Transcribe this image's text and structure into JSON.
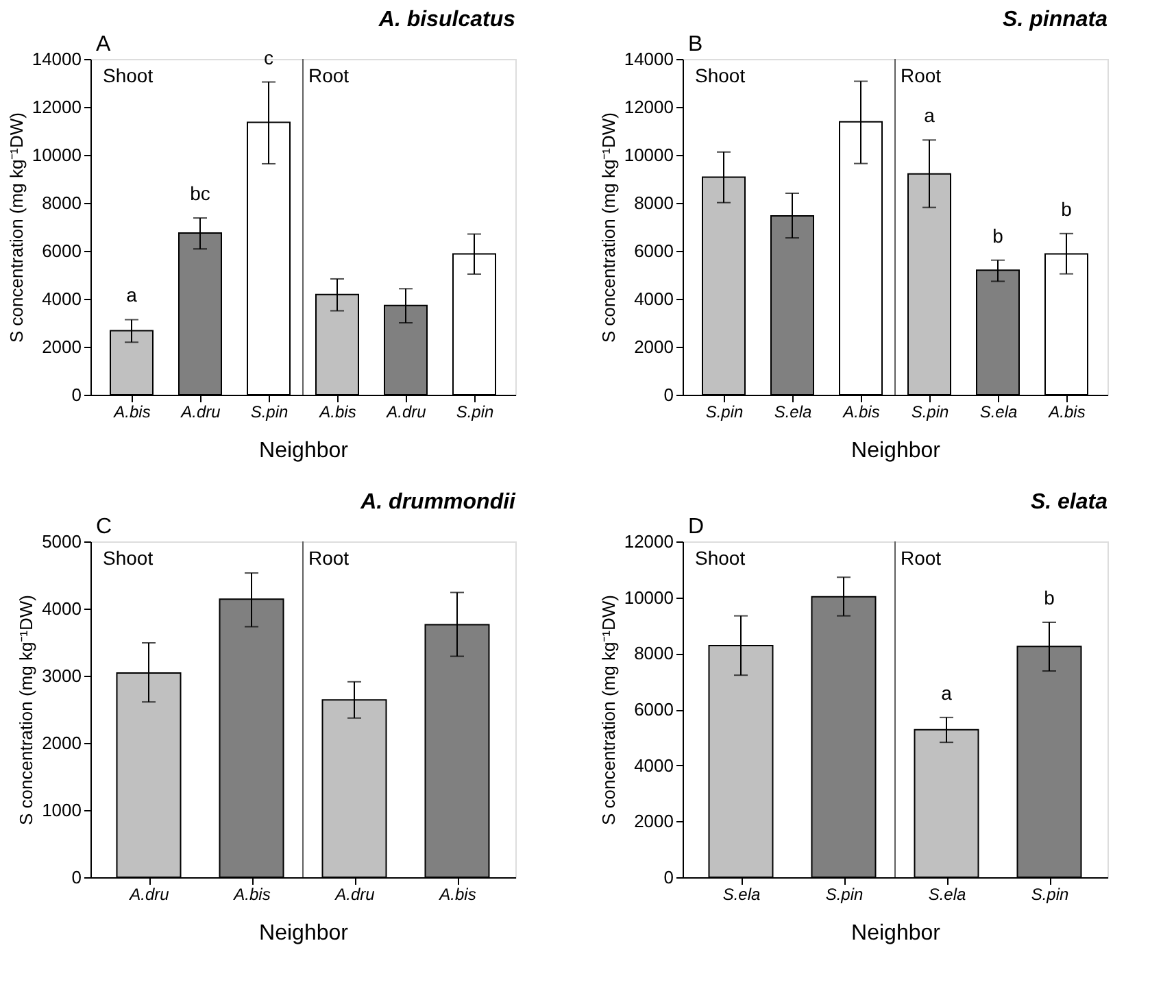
{
  "chart_data": [
    {
      "type": "bar",
      "title": "A. bisulcatus",
      "xlabel": "Neighbor",
      "ylabel": "S concentration (mg kg⁻¹DW)",
      "categories": [
        "A.bis",
        "A.dru",
        "S.pin",
        "A.bis",
        "A.dru",
        "S.pin"
      ],
      "values": [
        2670,
        6740,
        11360,
        4180,
        3720,
        5870
      ],
      "colors": [
        "#c0c0c0",
        "#808080",
        "#ffffff",
        "#c0c0c0",
        "#808080",
        "#ffffff"
      ],
      "errors": [
        [
          2190,
          3130
        ],
        [
          6080,
          7370
        ],
        [
          9630,
          13040
        ],
        [
          3500,
          4830
        ],
        [
          3000,
          4420
        ],
        [
          5030,
          6700
        ]
      ],
      "value_labels": [
        "a",
        "bc",
        "c",
        null,
        null,
        null
      ],
      "ylim": [
        0,
        14000
      ],
      "yticks": [
        0,
        2000,
        4000,
        6000,
        8000,
        10000,
        12000,
        14000
      ],
      "annotations": [
        "A",
        "Shoot",
        "Root"
      ],
      "grid": false
    },
    {
      "type": "bar",
      "title": "S. pinnata",
      "xlabel": "Neighbor",
      "ylabel": "S concentration (mg kg⁻¹DW)",
      "categories": [
        "S.pin",
        "S.ela",
        "A.bis",
        "S.pin",
        "S.ela",
        "A.bis"
      ],
      "values": [
        9070,
        7460,
        11380,
        9210,
        5190,
        5870
      ],
      "colors": [
        "#c0c0c0",
        "#808080",
        "#ffffff",
        "#c0c0c0",
        "#808080",
        "#ffffff"
      ],
      "errors": [
        [
          8010,
          10120
        ],
        [
          6540,
          8400
        ],
        [
          9640,
          13070
        ],
        [
          7810,
          10620
        ],
        [
          4730,
          5610
        ],
        [
          5040,
          6720
        ]
      ],
      "value_labels": [
        null,
        null,
        null,
        "a",
        "b",
        "b"
      ],
      "ylim": [
        0,
        14000
      ],
      "yticks": [
        0,
        2000,
        4000,
        6000,
        8000,
        10000,
        12000,
        14000
      ],
      "annotations": [
        "B",
        "Shoot",
        "Root"
      ],
      "grid": false
    },
    {
      "type": "bar",
      "title": "A. drummondii",
      "xlabel": "Neighbor",
      "ylabel": "S concentration (mg kg⁻¹DW)",
      "categories": [
        "A.dru",
        "A.bis",
        "A.dru",
        "A.bis"
      ],
      "values": [
        3040,
        4140,
        2640,
        3760
      ],
      "colors": [
        "#c0c0c0",
        "#808080",
        "#c0c0c0",
        "#808080"
      ],
      "errors": [
        [
          2610,
          3490
        ],
        [
          3730,
          4530
        ],
        [
          2370,
          2910
        ],
        [
          3290,
          4240
        ]
      ],
      "ylim": [
        0,
        5000
      ],
      "yticks": [
        0,
        1000,
        2000,
        3000,
        4000,
        5000
      ],
      "annotations": [
        "C",
        "Shoot",
        "Root"
      ],
      "grid": false
    },
    {
      "type": "bar",
      "title": "S. elata",
      "xlabel": "Neighbor",
      "ylabel": "S concentration (mg kg⁻¹DW)",
      "categories": [
        "S.ela",
        "S.pin",
        "S.ela",
        "S.pin"
      ],
      "values": [
        8280,
        10020,
        5270,
        8250
      ],
      "colors": [
        "#c0c0c0",
        "#808080",
        "#c0c0c0",
        "#808080"
      ],
      "errors": [
        [
          7220,
          9340
        ],
        [
          9340,
          10720
        ],
        [
          4820,
          5710
        ],
        [
          7370,
          9110
        ]
      ],
      "value_labels": [
        null,
        null,
        "a",
        "b"
      ],
      "ylim": [
        0,
        12000
      ],
      "yticks": [
        0,
        2000,
        4000,
        6000,
        8000,
        10000,
        12000
      ],
      "annotations": [
        "D",
        "Shoot",
        "Root"
      ],
      "grid": false
    }
  ]
}
